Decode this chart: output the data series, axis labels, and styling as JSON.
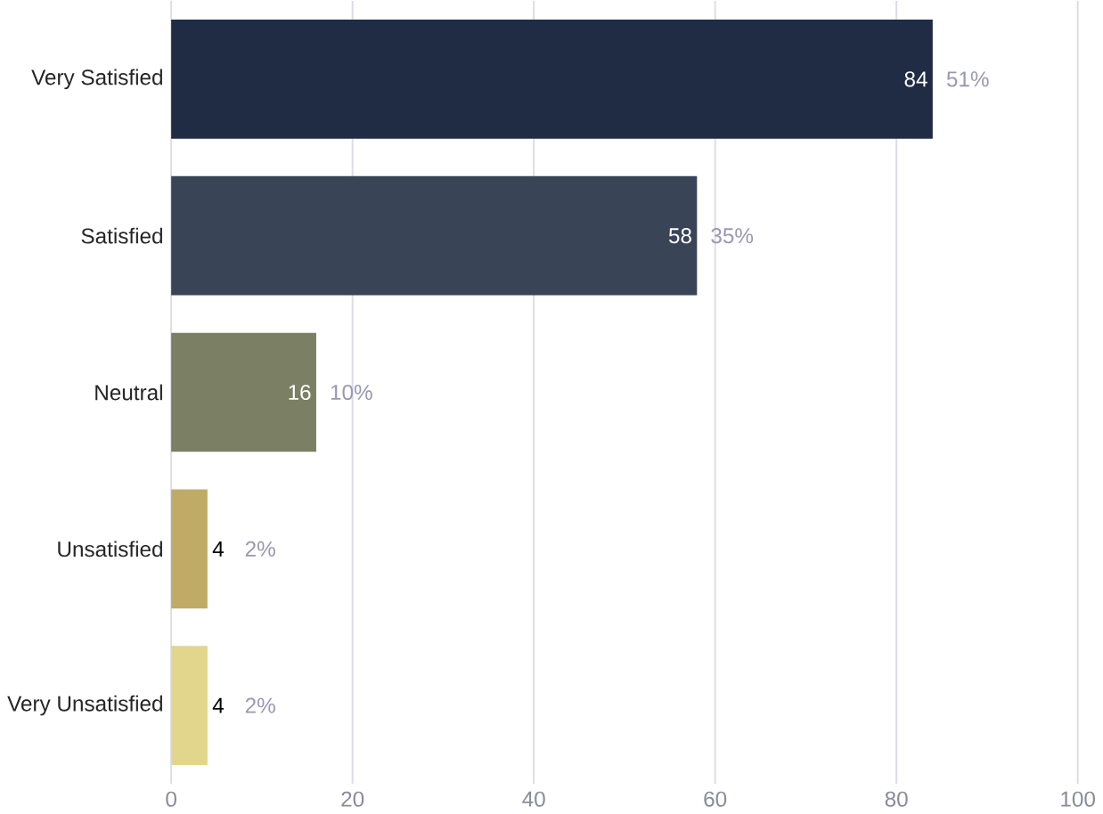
{
  "chart_data": {
    "type": "bar",
    "orientation": "horizontal",
    "categories": [
      "Very Satisfied",
      "Satisfied",
      "Neutral",
      "Unsatisfied",
      "Very Unsatisfied"
    ],
    "values": [
      84,
      58,
      16,
      4,
      4
    ],
    "colors": [
      "#1f2c43",
      "#3a4457",
      "#7b7f64",
      "#bfab66",
      "#e1d68c"
    ],
    "xlim": [
      0,
      100
    ],
    "xticks": [
      0,
      20,
      40,
      60,
      80,
      100
    ],
    "grid": "x",
    "data_labels": true,
    "annotations": [
      {
        "text": "51%",
        "x": 84,
        "y": "Very Satisfied"
      },
      {
        "text": "35%",
        "x": 58,
        "y": "Satisfied"
      },
      {
        "text": "10%",
        "x": 16,
        "y": "Neutral"
      },
      {
        "text": "2%",
        "x": 4,
        "y": "Unsatisfied"
      },
      {
        "text": "2%",
        "x": 4,
        "y": "Very Unsatisfied"
      }
    ]
  }
}
